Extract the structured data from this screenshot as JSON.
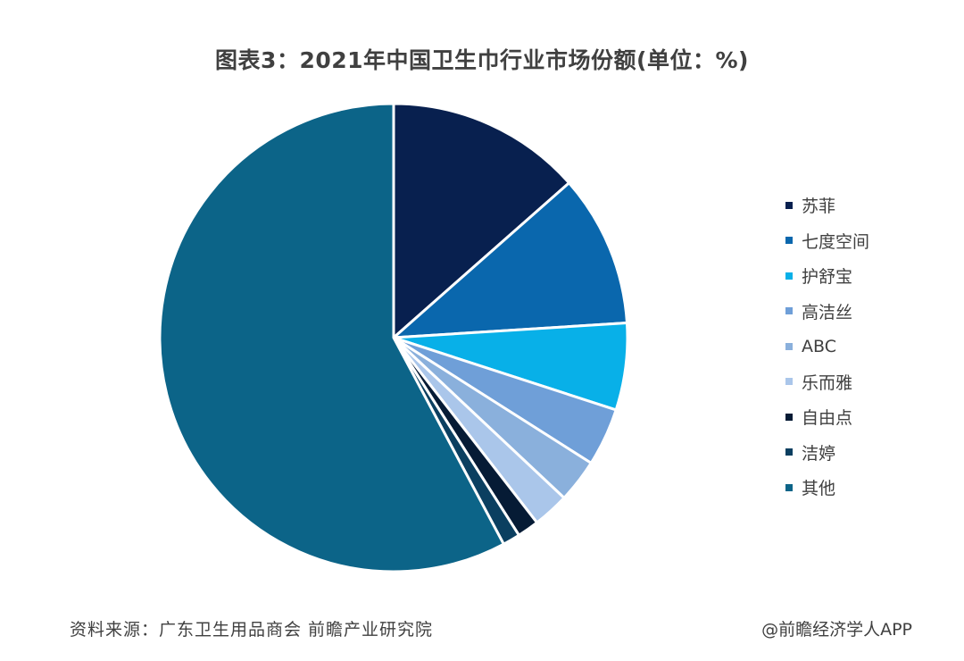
{
  "chart_data": {
    "type": "pie",
    "title": "图表3：2021年中国卫生巾行业市场份额(单位：%)",
    "slices": [
      {
        "label": "苏菲",
        "value": 13.5,
        "color": "#08204f"
      },
      {
        "label": "七度空间",
        "value": 10.5,
        "color": "#0a67ad"
      },
      {
        "label": "护舒宝",
        "value": 6.0,
        "color": "#08b0e8"
      },
      {
        "label": "高洁丝",
        "value": 4.0,
        "color": "#6f9fd8"
      },
      {
        "label": "ABC",
        "value": 3.0,
        "color": "#8ab0dc"
      },
      {
        "label": "乐而雅",
        "value": 2.5,
        "color": "#aac6ea"
      },
      {
        "label": "自由点",
        "value": 1.5,
        "color": "#061b35"
      },
      {
        "label": "洁婷",
        "value": 1.2,
        "color": "#0b3f60"
      },
      {
        "label": "其他",
        "value": 57.8,
        "color": "#0c6488"
      }
    ],
    "legend_position": "right",
    "start_angle": "12 o'clock",
    "direction": "clockwise"
  },
  "footer": {
    "source": "资料来源：广东卫生用品商会 前瞻产业研究院",
    "brand": "@前瞻经济学人APP"
  }
}
